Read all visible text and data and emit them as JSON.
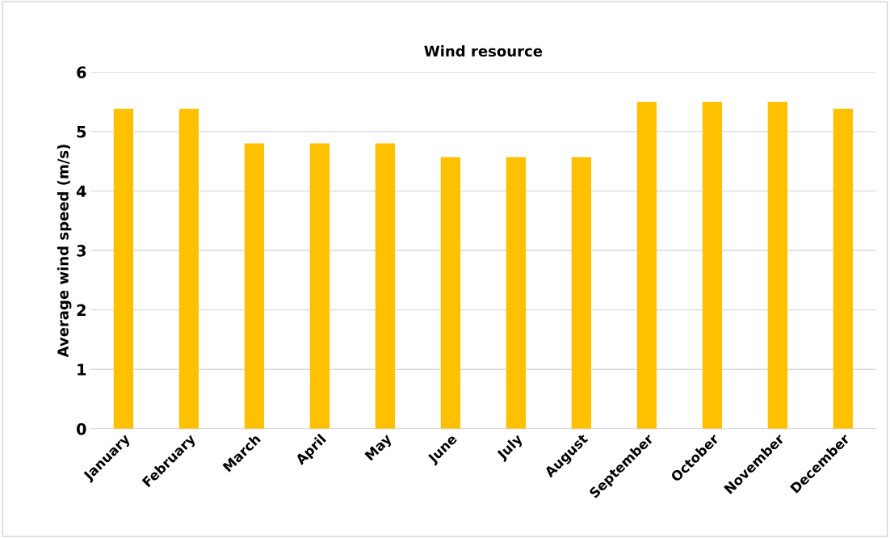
{
  "chart_data": {
    "type": "bar",
    "title": "Wind resource",
    "ylabel": "Average wind speed (m/s)",
    "categories": [
      "January",
      "February",
      "March",
      "April",
      "May",
      "June",
      "July",
      "August",
      "September",
      "October",
      "November",
      "December"
    ],
    "values": [
      5.38,
      5.38,
      4.8,
      4.8,
      4.8,
      4.57,
      4.57,
      4.57,
      5.5,
      5.5,
      5.5,
      5.38
    ],
    "color": "#ffc000",
    "ylim": [
      0,
      6
    ],
    "yticks": [
      0,
      1,
      2,
      3,
      4,
      5,
      6
    ],
    "grid": "y",
    "legend": false
  }
}
